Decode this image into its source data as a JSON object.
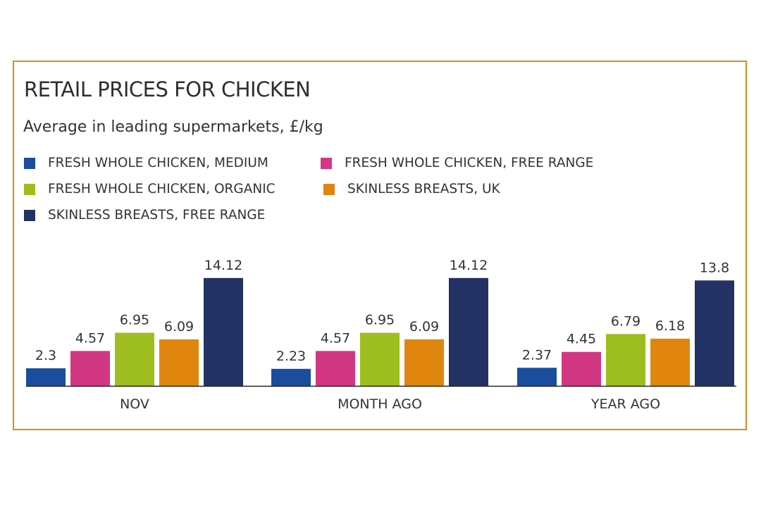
{
  "chart_data": {
    "type": "bar",
    "title": "RETAIL PRICES FOR CHICKEN",
    "subtitle": "Average in leading supermarkets, £/kg",
    "categories": [
      "NOV",
      "MONTH AGO",
      "YEAR AGO"
    ],
    "series": [
      {
        "name": "FRESH WHOLE CHICKEN, MEDIUM",
        "color": "#1b4d9e",
        "values": [
          2.3,
          2.23,
          2.37
        ],
        "labels": [
          "2.3",
          "2.23",
          "2.37"
        ]
      },
      {
        "name": "FRESH WHOLE CHICKEN, FREE RANGE",
        "color": "#d23783",
        "values": [
          4.57,
          4.57,
          4.45
        ],
        "labels": [
          "4.57",
          "4.57",
          "4.45"
        ]
      },
      {
        "name": "FRESH WHOLE CHICKEN, ORGANIC",
        "color": "#9dbe1e",
        "values": [
          6.95,
          6.95,
          6.79
        ],
        "labels": [
          "6.95",
          "6.95",
          "6.79"
        ]
      },
      {
        "name": "SKINLESS BREASTS, UK",
        "color": "#e0860e",
        "values": [
          6.09,
          6.09,
          6.18
        ],
        "labels": [
          "6.09",
          "6.09",
          "6.18"
        ]
      },
      {
        "name": "SKINLESS BREASTS, FREE RANGE",
        "color": "#233264",
        "values": [
          14.12,
          14.12,
          13.8
        ],
        "labels": [
          "14.12",
          "14.12",
          "13.8"
        ]
      }
    ],
    "legend": "top-left",
    "grid": false,
    "frame_color": "#e38a1a"
  }
}
